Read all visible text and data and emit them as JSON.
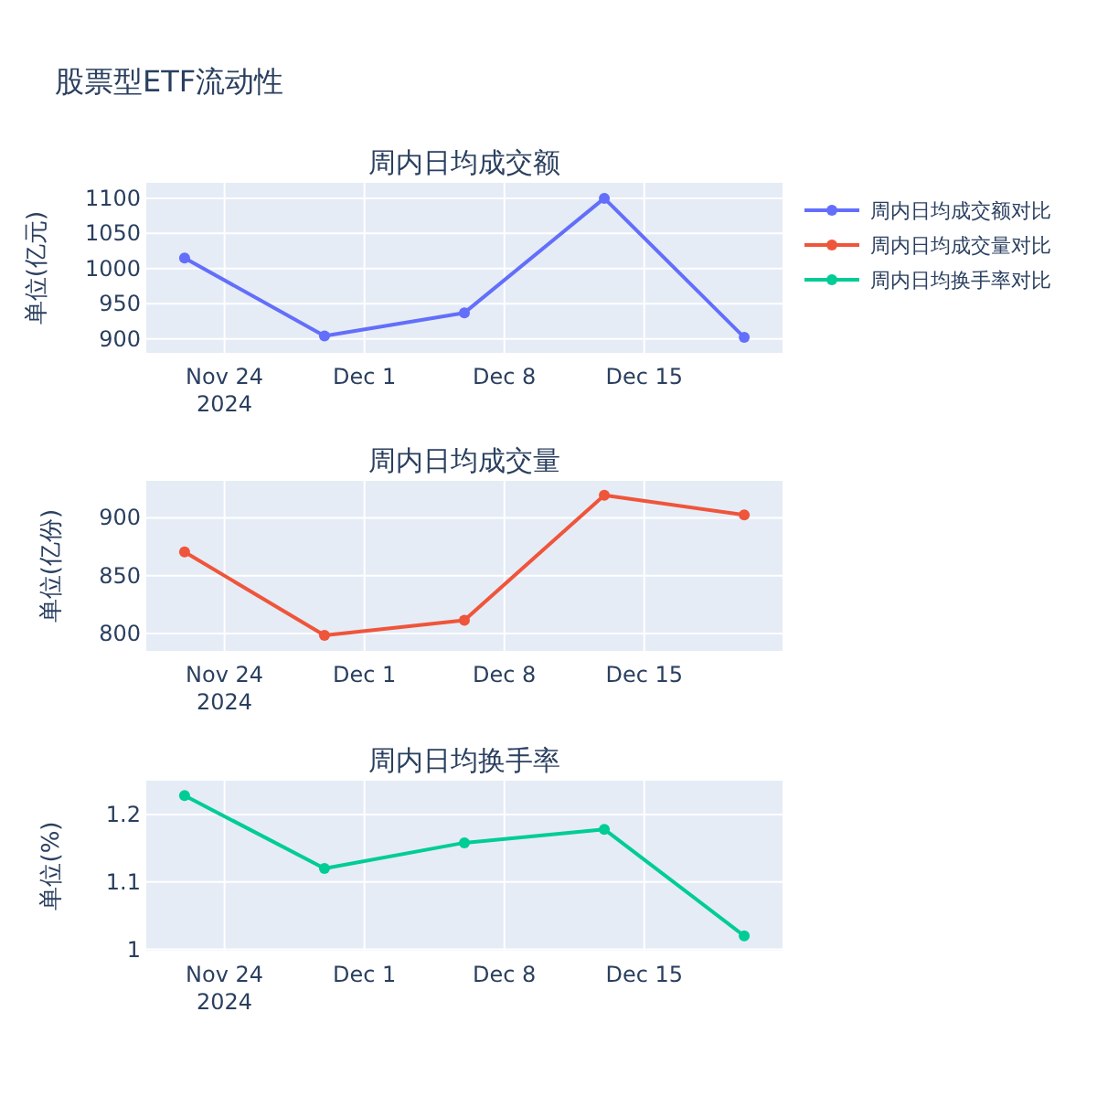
{
  "chart_data": [
    {
      "type": "line",
      "title": "股票型ETF流动性",
      "subtitle": "周内日均成交额",
      "ylabel": "单位(亿元)",
      "x": [
        "2024-11-22",
        "2024-11-29",
        "2024-12-06",
        "2024-12-13",
        "2024-12-20"
      ],
      "series": [
        {
          "name": "周内日均成交额对比",
          "color": "#636efa",
          "values": [
            1015,
            904,
            937,
            1100,
            902
          ]
        }
      ],
      "xlim": [
        "2024-11-20T02:00",
        "2024-12-21T22:00"
      ],
      "xticks": [
        {
          "value": "2024-11-24",
          "label": "Nov 24\n2024"
        },
        {
          "value": "2024-12-01",
          "label": "Dec 1"
        },
        {
          "value": "2024-12-08",
          "label": "Dec 8"
        },
        {
          "value": "2024-12-15",
          "label": "Dec 15"
        }
      ],
      "ylim": [
        880,
        1122
      ],
      "yticks": [
        900,
        950,
        1000,
        1050,
        1100
      ],
      "grid": true,
      "legend": "right",
      "marker": "circle",
      "line_style": "solid"
    },
    {
      "type": "line",
      "title": "周内日均成交量",
      "ylabel": "单位(亿份)",
      "x": [
        "2024-11-22",
        "2024-11-29",
        "2024-12-06",
        "2024-12-13",
        "2024-12-20"
      ],
      "series": [
        {
          "name": "周内日均成交量对比",
          "color": "#ef553b",
          "values": [
            870.5,
            798.5,
            811.5,
            919.5,
            902.5
          ]
        }
      ],
      "xlim": [
        "2024-11-20T02:00",
        "2024-12-21T22:00"
      ],
      "xticks": [
        {
          "value": "2024-11-24",
          "label": "Nov 24\n2024"
        },
        {
          "value": "2024-12-01",
          "label": "Dec 1"
        },
        {
          "value": "2024-12-08",
          "label": "Dec 8"
        },
        {
          "value": "2024-12-15",
          "label": "Dec 15"
        }
      ],
      "ylim": [
        785,
        932
      ],
      "yticks": [
        800,
        850,
        900
      ],
      "grid": true,
      "legend": "right",
      "marker": "circle",
      "line_style": "solid"
    },
    {
      "type": "line",
      "title": "周内日均换手率",
      "ylabel": "单位(%)",
      "x": [
        "2024-11-22",
        "2024-11-29",
        "2024-12-06",
        "2024-12-13",
        "2024-12-20"
      ],
      "series": [
        {
          "name": "周内日均换手率对比",
          "color": "#00cc96",
          "values": [
            1.228,
            1.12,
            1.158,
            1.178,
            1.02
          ]
        }
      ],
      "xlim": [
        "2024-11-20T02:00",
        "2024-12-21T22:00"
      ],
      "xticks": [
        {
          "value": "2024-11-24",
          "label": "Nov 24\n2024"
        },
        {
          "value": "2024-12-01",
          "label": "Dec 1"
        },
        {
          "value": "2024-12-08",
          "label": "Dec 8"
        },
        {
          "value": "2024-12-15",
          "label": "Dec 15"
        }
      ],
      "ylim": [
        0.998,
        1.25
      ],
      "yticks": [
        1,
        1.1,
        1.2
      ],
      "grid": true,
      "legend": "right",
      "marker": "circle",
      "line_style": "solid"
    }
  ]
}
